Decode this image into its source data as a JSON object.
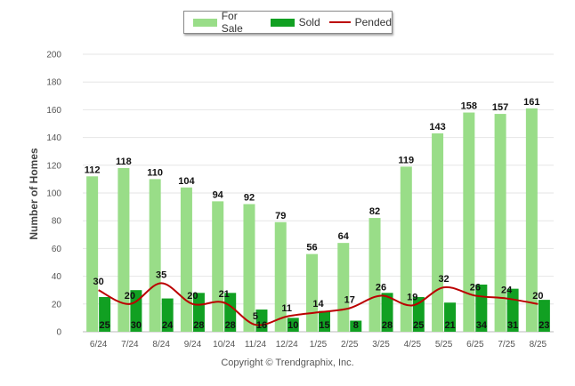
{
  "chart_data": {
    "type": "bar",
    "ylabel": "Number of Homes",
    "ylim": [
      0,
      200
    ],
    "yticks": [
      0,
      20,
      40,
      60,
      80,
      100,
      120,
      140,
      160,
      180,
      200
    ],
    "grid": true,
    "legend_position": "top-center",
    "categories": [
      "6/24",
      "7/24",
      "8/24",
      "9/24",
      "10/24",
      "11/24",
      "12/24",
      "1/25",
      "2/25",
      "3/25",
      "4/25",
      "5/25",
      "6/25",
      "7/25",
      "8/25"
    ],
    "series": [
      {
        "name": "For Sale",
        "type": "bar",
        "color": "#99dd88",
        "values": [
          112,
          118,
          110,
          104,
          94,
          92,
          79,
          56,
          64,
          82,
          119,
          143,
          158,
          157,
          161
        ]
      },
      {
        "name": "Sold",
        "type": "bar",
        "color": "#11a022",
        "values": [
          25,
          30,
          24,
          28,
          28,
          16,
          10,
          15,
          8,
          28,
          25,
          21,
          34,
          31,
          23
        ]
      },
      {
        "name": "Pended",
        "type": "line",
        "color": "#bb0000",
        "values": [
          30,
          20,
          35,
          20,
          21,
          5,
          11,
          14,
          17,
          26,
          19,
          32,
          26,
          24,
          20
        ]
      }
    ]
  },
  "footer": {
    "copyright": "Copyright © Trendgraphix, Inc."
  }
}
